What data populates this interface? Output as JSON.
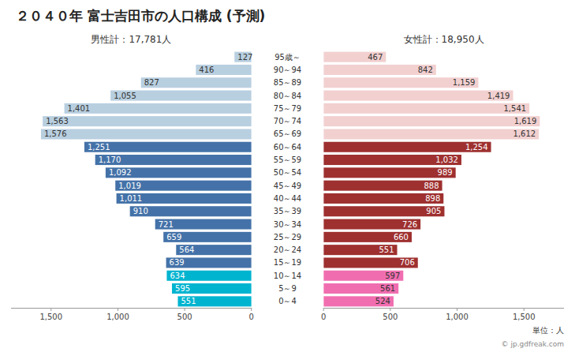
{
  "chart_data": {
    "type": "bar",
    "orientation": "horizontal",
    "title": "２０４０年 富士吉田市の人口構成 (予測)",
    "annotations": [
      "単位：人",
      "© jp.gdfreak.com"
    ],
    "categories": [
      "95歳～",
      "90～94",
      "85～89",
      "80～84",
      "75～79",
      "70～74",
      "65～69",
      "60～64",
      "55～59",
      "50～54",
      "45～49",
      "40～44",
      "35～39",
      "30～34",
      "25～29",
      "20～24",
      "15～19",
      "10～14",
      "5～9",
      "0～4"
    ],
    "series": [
      {
        "name": "男性計：17,781人",
        "values": [
          127,
          416,
          827,
          1055,
          1401,
          1563,
          1576,
          1251,
          1170,
          1092,
          1019,
          1011,
          910,
          721,
          659,
          564,
          639,
          634,
          595,
          551
        ],
        "value_labels": [
          "127",
          "416",
          "827",
          "1,055",
          "1,401",
          "1,563",
          "1,576",
          "1,251",
          "1,170",
          "1,092",
          "1,019",
          "1,011",
          "910",
          "721",
          "659",
          "564",
          "639",
          "634",
          "595",
          "551"
        ],
        "colors": [
          "#b8cfe0",
          "#b8cfe0",
          "#b8cfe0",
          "#b8cfe0",
          "#b8cfe0",
          "#b8cfe0",
          "#b8cfe0",
          "#4472a8",
          "#4472a8",
          "#4472a8",
          "#4472a8",
          "#4472a8",
          "#4472a8",
          "#4472a8",
          "#4472a8",
          "#4472a8",
          "#4472a8",
          "#00b4d0",
          "#00b4d0",
          "#00b4d0"
        ]
      },
      {
        "name": "女性計：18,950人",
        "values": [
          467,
          842,
          1159,
          1419,
          1541,
          1619,
          1612,
          1254,
          1032,
          989,
          888,
          898,
          905,
          726,
          660,
          551,
          706,
          597,
          561,
          524
        ],
        "value_labels": [
          "467",
          "842",
          "1,159",
          "1,419",
          "1,541",
          "1,619",
          "1,612",
          "1,254",
          "1,032",
          "989",
          "888",
          "898",
          "905",
          "726",
          "660",
          "551",
          "706",
          "597",
          "561",
          "524"
        ],
        "colors": [
          "#f2d0d0",
          "#f2d0d0",
          "#f2d0d0",
          "#f2d0d0",
          "#f2d0d0",
          "#f2d0d0",
          "#f2d0d0",
          "#9e3030",
          "#9e3030",
          "#9e3030",
          "#9e3030",
          "#9e3030",
          "#9e3030",
          "#9e3030",
          "#9e3030",
          "#9e3030",
          "#9e3030",
          "#f06eb0",
          "#f06eb0",
          "#f06eb0"
        ]
      }
    ],
    "xlim": [
      0,
      1800
    ],
    "xticks": [
      0,
      500,
      {
        "value": 1000,
        "label": "1,000"
      },
      {
        "value": 1500,
        "label": "1,500"
      }
    ],
    "grid": false,
    "data_labels": true
  }
}
